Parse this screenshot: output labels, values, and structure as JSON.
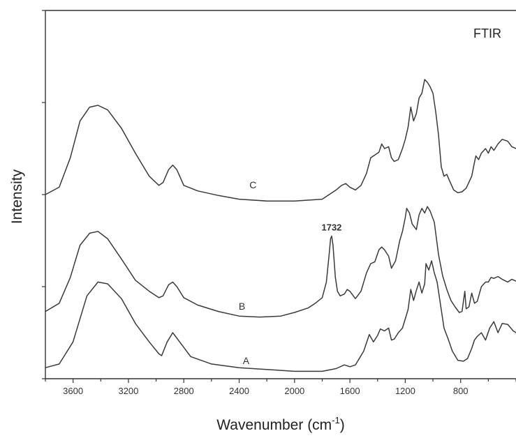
{
  "chart_data": {
    "type": "line",
    "title": "FTIR",
    "xlabel": "Wavenumber (cm",
    "xlabel_sup": "-1",
    "xlabel_end": ")",
    "ylabel": "Intensity",
    "xlim": [
      3800,
      400
    ],
    "x_reversed": true,
    "x_ticks": [
      3600,
      3200,
      2800,
      2400,
      2000,
      1600,
      1200,
      800
    ],
    "ylim": [
      0,
      4
    ],
    "y_tick_labels_shown": false,
    "grid": false,
    "legend": "none",
    "annotations": [
      {
        "text": "1732",
        "x": 1732,
        "y": 1.61
      }
    ],
    "series": [
      {
        "name": "A",
        "label_pos": {
          "x": 2350,
          "y": 0.16
        },
        "points": [
          [
            3800,
            0.12
          ],
          [
            3700,
            0.16
          ],
          [
            3600,
            0.4
          ],
          [
            3500,
            0.9
          ],
          [
            3420,
            1.05
          ],
          [
            3350,
            1.03
          ],
          [
            3250,
            0.87
          ],
          [
            3150,
            0.6
          ],
          [
            3050,
            0.4
          ],
          [
            2980,
            0.27
          ],
          [
            2960,
            0.25
          ],
          [
            2920,
            0.4
          ],
          [
            2880,
            0.5
          ],
          [
            2830,
            0.4
          ],
          [
            2750,
            0.24
          ],
          [
            2600,
            0.16
          ],
          [
            2400,
            0.12
          ],
          [
            2200,
            0.1
          ],
          [
            2000,
            0.08
          ],
          [
            1800,
            0.08
          ],
          [
            1700,
            0.11
          ],
          [
            1640,
            0.15
          ],
          [
            1600,
            0.13
          ],
          [
            1560,
            0.15
          ],
          [
            1500,
            0.3
          ],
          [
            1460,
            0.48
          ],
          [
            1430,
            0.4
          ],
          [
            1400,
            0.47
          ],
          [
            1380,
            0.54
          ],
          [
            1350,
            0.52
          ],
          [
            1320,
            0.55
          ],
          [
            1300,
            0.42
          ],
          [
            1280,
            0.43
          ],
          [
            1250,
            0.5
          ],
          [
            1220,
            0.55
          ],
          [
            1180,
            0.75
          ],
          [
            1160,
            0.97
          ],
          [
            1140,
            0.85
          ],
          [
            1120,
            0.96
          ],
          [
            1100,
            1.05
          ],
          [
            1080,
            0.93
          ],
          [
            1060,
            1.03
          ],
          [
            1050,
            1.25
          ],
          [
            1030,
            1.18
          ],
          [
            1010,
            1.28
          ],
          [
            990,
            1.15
          ],
          [
            970,
            1.05
          ],
          [
            950,
            0.85
          ],
          [
            920,
            0.55
          ],
          [
            890,
            0.43
          ],
          [
            860,
            0.3
          ],
          [
            820,
            0.2
          ],
          [
            780,
            0.19
          ],
          [
            750,
            0.22
          ],
          [
            720,
            0.33
          ],
          [
            700,
            0.42
          ],
          [
            680,
            0.46
          ],
          [
            650,
            0.5
          ],
          [
            620,
            0.42
          ],
          [
            590,
            0.55
          ],
          [
            560,
            0.62
          ],
          [
            530,
            0.5
          ],
          [
            500,
            0.6
          ],
          [
            460,
            0.59
          ],
          [
            420,
            0.52
          ],
          [
            400,
            0.5
          ]
        ]
      },
      {
        "name": "B",
        "label_pos": {
          "x": 2380,
          "y": 0.75
        },
        "points": [
          [
            3800,
            0.73
          ],
          [
            3700,
            0.82
          ],
          [
            3620,
            1.1
          ],
          [
            3550,
            1.45
          ],
          [
            3480,
            1.58
          ],
          [
            3420,
            1.6
          ],
          [
            3350,
            1.52
          ],
          [
            3250,
            1.3
          ],
          [
            3150,
            1.07
          ],
          [
            3050,
            0.95
          ],
          [
            2980,
            0.88
          ],
          [
            2950,
            0.9
          ],
          [
            2910,
            1.02
          ],
          [
            2880,
            1.05
          ],
          [
            2850,
            1.0
          ],
          [
            2800,
            0.88
          ],
          [
            2700,
            0.8
          ],
          [
            2550,
            0.73
          ],
          [
            2400,
            0.68
          ],
          [
            2250,
            0.67
          ],
          [
            2100,
            0.68
          ],
          [
            2000,
            0.72
          ],
          [
            1900,
            0.77
          ],
          [
            1850,
            0.82
          ],
          [
            1800,
            0.88
          ],
          [
            1770,
            1.05
          ],
          [
            1750,
            1.35
          ],
          [
            1740,
            1.52
          ],
          [
            1732,
            1.55
          ],
          [
            1722,
            1.45
          ],
          [
            1705,
            1.1
          ],
          [
            1690,
            0.95
          ],
          [
            1670,
            0.9
          ],
          [
            1640,
            0.92
          ],
          [
            1620,
            0.97
          ],
          [
            1600,
            0.95
          ],
          [
            1560,
            0.87
          ],
          [
            1520,
            0.95
          ],
          [
            1480,
            1.15
          ],
          [
            1450,
            1.25
          ],
          [
            1420,
            1.27
          ],
          [
            1390,
            1.4
          ],
          [
            1370,
            1.43
          ],
          [
            1350,
            1.4
          ],
          [
            1320,
            1.33
          ],
          [
            1300,
            1.2
          ],
          [
            1270,
            1.28
          ],
          [
            1240,
            1.5
          ],
          [
            1220,
            1.6
          ],
          [
            1200,
            1.75
          ],
          [
            1190,
            1.85
          ],
          [
            1170,
            1.8
          ],
          [
            1150,
            1.68
          ],
          [
            1120,
            1.62
          ],
          [
            1100,
            1.78
          ],
          [
            1080,
            1.85
          ],
          [
            1060,
            1.8
          ],
          [
            1040,
            1.87
          ],
          [
            1020,
            1.82
          ],
          [
            990,
            1.7
          ],
          [
            960,
            1.35
          ],
          [
            930,
            1.12
          ],
          [
            900,
            0.97
          ],
          [
            870,
            0.85
          ],
          [
            840,
            0.78
          ],
          [
            810,
            0.72
          ],
          [
            790,
            0.73
          ],
          [
            770,
            0.95
          ],
          [
            760,
            0.76
          ],
          [
            740,
            0.78
          ],
          [
            720,
            0.93
          ],
          [
            700,
            0.82
          ],
          [
            680,
            0.84
          ],
          [
            650,
            1.0
          ],
          [
            620,
            1.05
          ],
          [
            600,
            1.05
          ],
          [
            580,
            1.1
          ],
          [
            560,
            1.09
          ],
          [
            530,
            1.11
          ],
          [
            500,
            1.08
          ],
          [
            460,
            1.05
          ],
          [
            430,
            1.08
          ],
          [
            400,
            1.06
          ]
        ]
      },
      {
        "name": "C",
        "label_pos": {
          "x": 2300,
          "y": 2.07
        },
        "points": [
          [
            3800,
            2.0
          ],
          [
            3700,
            2.08
          ],
          [
            3620,
            2.4
          ],
          [
            3550,
            2.8
          ],
          [
            3480,
            2.95
          ],
          [
            3420,
            2.97
          ],
          [
            3350,
            2.92
          ],
          [
            3250,
            2.72
          ],
          [
            3150,
            2.45
          ],
          [
            3050,
            2.2
          ],
          [
            2980,
            2.1
          ],
          [
            2950,
            2.13
          ],
          [
            2910,
            2.27
          ],
          [
            2880,
            2.32
          ],
          [
            2850,
            2.27
          ],
          [
            2800,
            2.1
          ],
          [
            2700,
            2.04
          ],
          [
            2550,
            1.99
          ],
          [
            2400,
            1.95
          ],
          [
            2200,
            1.93
          ],
          [
            2000,
            1.93
          ],
          [
            1800,
            1.95
          ],
          [
            1700,
            2.05
          ],
          [
            1660,
            2.1
          ],
          [
            1630,
            2.12
          ],
          [
            1600,
            2.08
          ],
          [
            1560,
            2.05
          ],
          [
            1520,
            2.1
          ],
          [
            1480,
            2.23
          ],
          [
            1450,
            2.4
          ],
          [
            1420,
            2.43
          ],
          [
            1390,
            2.46
          ],
          [
            1370,
            2.55
          ],
          [
            1350,
            2.5
          ],
          [
            1320,
            2.52
          ],
          [
            1300,
            2.4
          ],
          [
            1280,
            2.36
          ],
          [
            1250,
            2.38
          ],
          [
            1220,
            2.5
          ],
          [
            1200,
            2.6
          ],
          [
            1180,
            2.73
          ],
          [
            1160,
            2.95
          ],
          [
            1140,
            2.8
          ],
          [
            1120,
            2.88
          ],
          [
            1100,
            3.05
          ],
          [
            1080,
            3.1
          ],
          [
            1060,
            3.25
          ],
          [
            1040,
            3.22
          ],
          [
            1020,
            3.17
          ],
          [
            1000,
            3.1
          ],
          [
            980,
            2.9
          ],
          [
            960,
            2.65
          ],
          [
            940,
            2.3
          ],
          [
            920,
            2.2
          ],
          [
            900,
            2.22
          ],
          [
            880,
            2.15
          ],
          [
            850,
            2.05
          ],
          [
            820,
            2.02
          ],
          [
            790,
            2.03
          ],
          [
            760,
            2.07
          ],
          [
            720,
            2.2
          ],
          [
            700,
            2.35
          ],
          [
            690,
            2.42
          ],
          [
            670,
            2.38
          ],
          [
            650,
            2.45
          ],
          [
            620,
            2.5
          ],
          [
            600,
            2.45
          ],
          [
            580,
            2.52
          ],
          [
            560,
            2.48
          ],
          [
            530,
            2.55
          ],
          [
            500,
            2.6
          ],
          [
            460,
            2.58
          ],
          [
            430,
            2.52
          ],
          [
            400,
            2.5
          ]
        ]
      }
    ]
  }
}
